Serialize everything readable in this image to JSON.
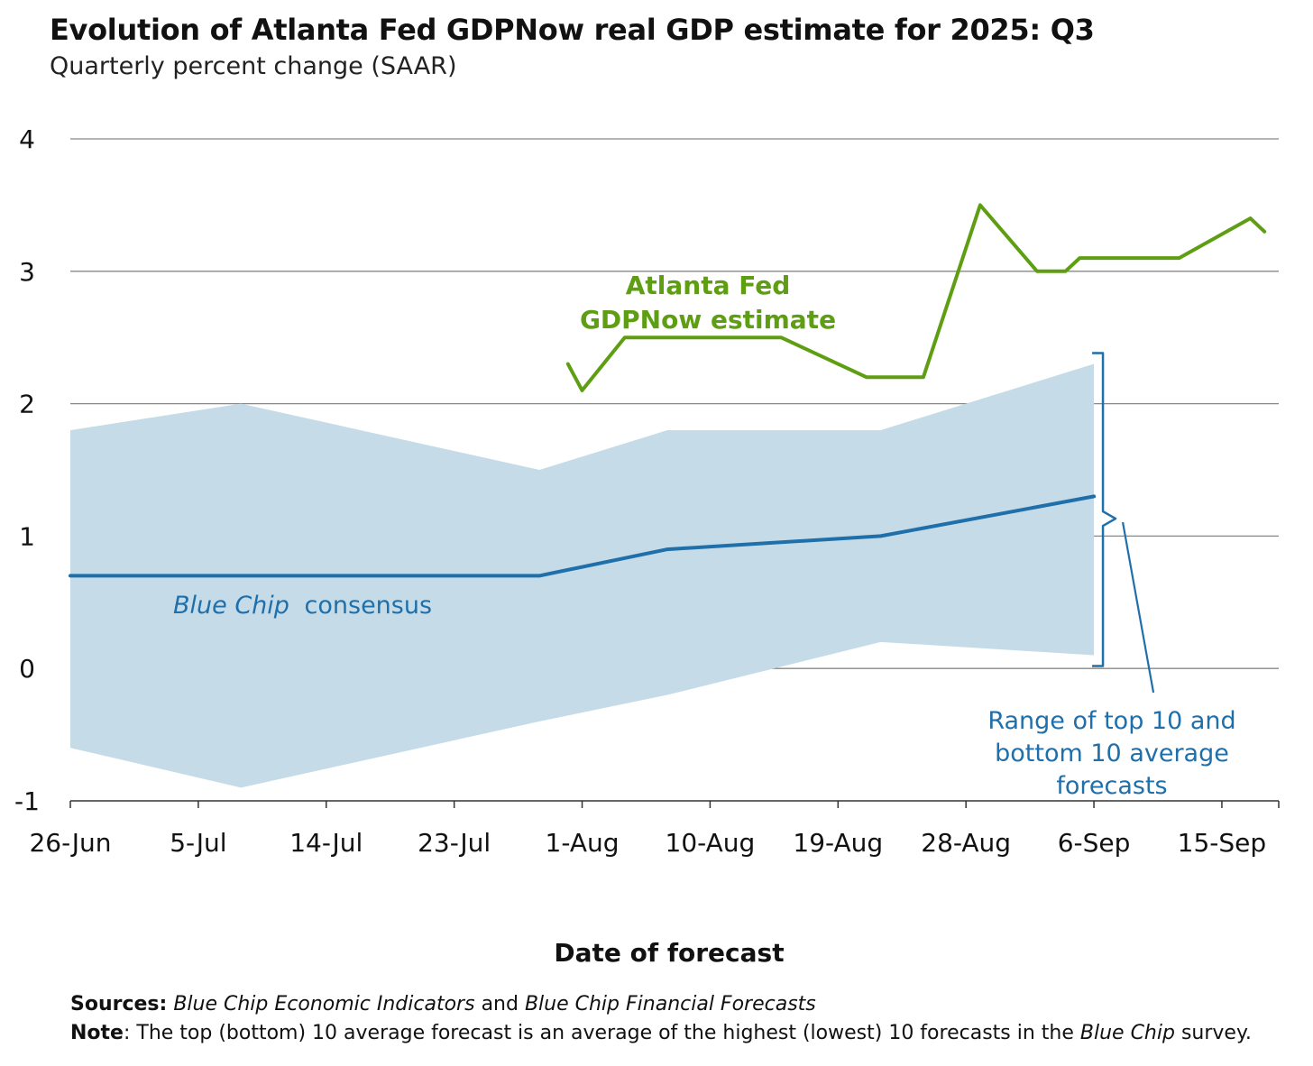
{
  "title": "Evolution of Atlanta Fed GDPNow real GDP estimate for 2025: Q3",
  "subtitle": "Quarterly percent change (SAAR)",
  "xlabel": "Date of forecast",
  "colors": {
    "gdpnow": "#5e9e12",
    "consensus": "#1f6fab",
    "range_fill": "#c5dce8",
    "grid": "#888888",
    "axis": "#333333"
  },
  "annotations": {
    "gdpnow_label": [
      "Atlanta Fed",
      "GDPNow estimate"
    ],
    "consensus_label_italic": "Blue Chip",
    "consensus_label_rest": "consensus",
    "range_label": [
      "Range of top 10 and",
      "bottom 10 average",
      "forecasts"
    ]
  },
  "footnotes": {
    "sources_label": "Sources:",
    "sources_italic_1": "Blue Chip Economic Indicators",
    "sources_and": "and",
    "sources_italic_2": "Blue Chip Financial Forecasts",
    "note_label": "Note",
    "note_text_1": ": The top (bottom) 10 average forecast is an average of the highest (lowest) 10 forecasts in the",
    "note_italic": "Blue Chip",
    "note_text_2": "survey."
  },
  "chart_data": {
    "type": "line",
    "title": "Evolution of Atlanta Fed GDPNow real GDP estimate for 2025: Q3",
    "subtitle": "Quarterly percent change (SAAR)",
    "xlabel": "Date of forecast",
    "ylabel": "",
    "ylim": [
      -1,
      4
    ],
    "yticks": [
      -1,
      0,
      1,
      2,
      3,
      4
    ],
    "xlim": [
      "2025-06-26",
      "2025-09-19"
    ],
    "xticks": [
      "2025-06-26",
      "2025-07-05",
      "2025-07-14",
      "2025-07-23",
      "2025-08-01",
      "2025-08-10",
      "2025-08-19",
      "2025-08-28",
      "2025-09-06",
      "2025-09-15"
    ],
    "xtick_labels": [
      "26-Jun",
      "5-Jul",
      "14-Jul",
      "23-Jul",
      "1-Aug",
      "10-Aug",
      "19-Aug",
      "28-Aug",
      "6-Sep",
      "15-Sep"
    ],
    "grid": true,
    "series": [
      {
        "name": "Atlanta Fed GDPNow estimate",
        "type": "line",
        "color": "#5e9e12",
        "points": [
          [
            "2025-07-31",
            2.3
          ],
          [
            "2025-08-01",
            2.1
          ],
          [
            "2025-08-04",
            2.5
          ],
          [
            "2025-08-08",
            2.5
          ],
          [
            "2025-08-15",
            2.5
          ],
          [
            "2025-08-21",
            2.2
          ],
          [
            "2025-08-25",
            2.2
          ],
          [
            "2025-08-29",
            3.5
          ],
          [
            "2025-09-02",
            3.0
          ],
          [
            "2025-09-04",
            3.0
          ],
          [
            "2025-09-05",
            3.1
          ],
          [
            "2025-09-12",
            3.1
          ],
          [
            "2025-09-17",
            3.4
          ],
          [
            "2025-09-18",
            3.3
          ]
        ]
      },
      {
        "name": "Blue Chip consensus",
        "type": "line",
        "color": "#1f6fab",
        "points": [
          [
            "2025-06-26",
            0.7
          ],
          [
            "2025-07-29",
            0.7
          ],
          [
            "2025-08-07",
            0.9
          ],
          [
            "2025-08-22",
            1.0
          ],
          [
            "2025-09-06",
            1.3
          ]
        ]
      },
      {
        "name": "Range of top 10 and bottom 10 average forecasts",
        "type": "area",
        "color": "#c5dce8",
        "upper": [
          [
            "2025-06-26",
            1.8
          ],
          [
            "2025-07-08",
            2.0
          ],
          [
            "2025-07-29",
            1.5
          ],
          [
            "2025-08-07",
            1.8
          ],
          [
            "2025-08-22",
            1.8
          ],
          [
            "2025-09-06",
            2.3
          ]
        ],
        "lower": [
          [
            "2025-06-26",
            -0.6
          ],
          [
            "2025-07-08",
            -0.9
          ],
          [
            "2025-07-29",
            -0.4
          ],
          [
            "2025-08-07",
            -0.2
          ],
          [
            "2025-08-22",
            0.2
          ],
          [
            "2025-09-06",
            0.1
          ]
        ]
      }
    ]
  }
}
